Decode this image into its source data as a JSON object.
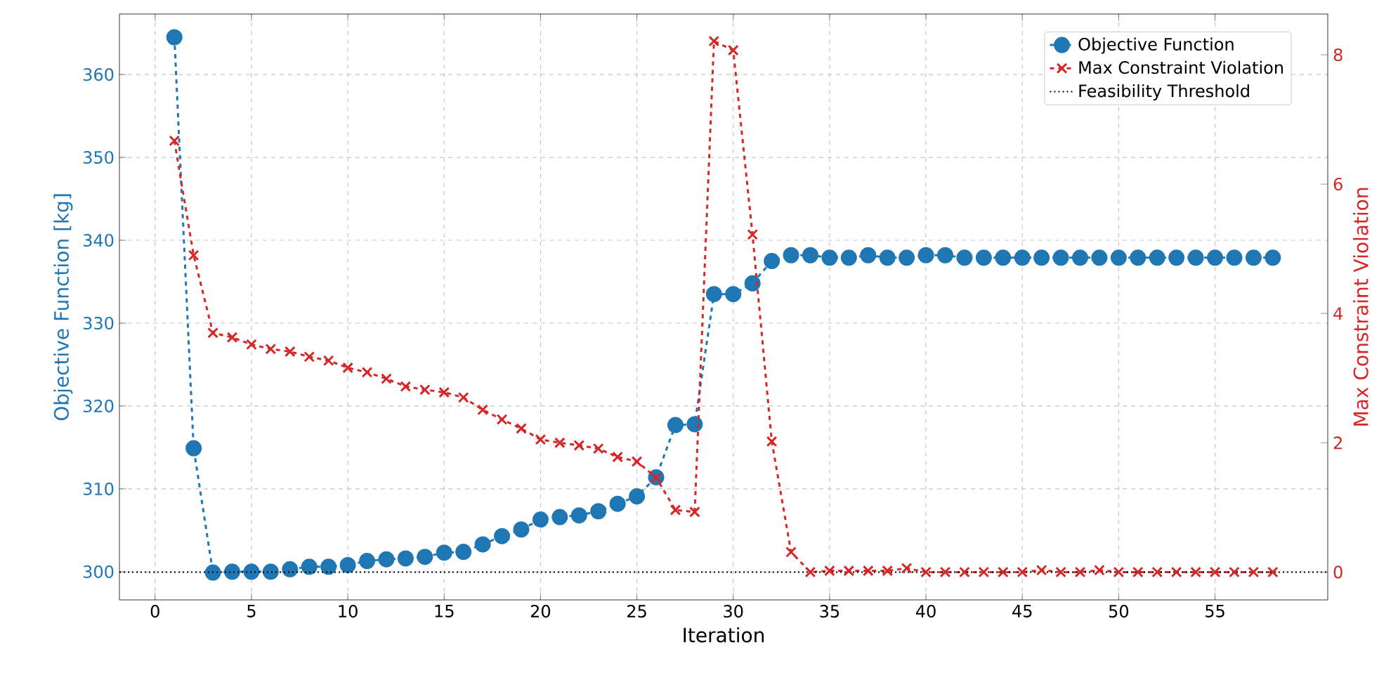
{
  "chart_data": {
    "type": "line",
    "xlabel": "Iteration",
    "ylabel": "Objective Function [kg]",
    "y2label": "Max Constraint Violation",
    "x": [
      1,
      2,
      3,
      4,
      5,
      6,
      7,
      8,
      9,
      10,
      11,
      12,
      13,
      14,
      15,
      16,
      17,
      18,
      19,
      20,
      21,
      22,
      23,
      24,
      25,
      26,
      27,
      28,
      29,
      30,
      31,
      32,
      33,
      34,
      35,
      36,
      37,
      38,
      39,
      40,
      41,
      42,
      43,
      44,
      45,
      46,
      47,
      48,
      49,
      50,
      51,
      52,
      53,
      54,
      55,
      56,
      57,
      58
    ],
    "series": [
      {
        "name": "Objective Function",
        "color": "#1f77b4",
        "marker": "circle",
        "line_style": "dashed",
        "values": [
          364.5,
          314.9,
          299.9,
          300.0,
          300.0,
          300.0,
          300.3,
          300.6,
          300.6,
          300.8,
          301.3,
          301.5,
          301.6,
          301.8,
          302.3,
          302.4,
          303.3,
          304.3,
          305.1,
          306.3,
          306.6,
          306.8,
          307.3,
          308.2,
          309.1,
          311.4,
          317.7,
          317.8,
          333.5,
          333.5,
          334.8,
          337.5,
          338.2,
          338.2,
          337.9,
          337.9,
          338.2,
          337.9,
          337.9,
          338.2,
          338.2,
          337.9,
          337.9,
          337.9,
          337.9,
          337.9,
          337.9,
          337.9,
          337.9,
          337.9,
          337.9,
          337.9,
          337.9,
          337.9,
          337.9,
          337.9,
          337.9,
          337.9
        ]
      },
      {
        "name": "Max Constraint Violation",
        "color": "#d62728",
        "marker": "cross",
        "line_style": "dashed",
        "axis": "y2",
        "values": [
          6.67,
          4.9,
          3.7,
          3.63,
          3.52,
          3.45,
          3.41,
          3.33,
          3.27,
          3.16,
          3.09,
          2.99,
          2.87,
          2.82,
          2.78,
          2.7,
          2.51,
          2.36,
          2.22,
          2.05,
          2.0,
          1.96,
          1.91,
          1.78,
          1.71,
          1.46,
          0.96,
          0.93,
          8.21,
          8.07,
          5.22,
          2.02,
          0.31,
          0.0,
          0.02,
          0.02,
          0.02,
          0.02,
          0.06,
          0.0,
          0.0,
          0.0,
          0.0,
          0.0,
          0.0,
          0.03,
          0.0,
          0.0,
          0.03,
          0.0,
          0.0,
          0.0,
          0.0,
          0.0,
          0.0,
          0.0,
          0.0,
          0.0
        ]
      }
    ],
    "ref_lines": [
      {
        "axis": "y2",
        "value": 0,
        "label": "Feasibility Threshold",
        "color": "#000000",
        "line_style": "dotted"
      }
    ],
    "xlim": [
      -1.85,
      60.85
    ],
    "xticks": [
      0,
      5,
      10,
      15,
      20,
      25,
      30,
      35,
      40,
      45,
      50,
      55
    ],
    "ylim": [
      296.6,
      367.3
    ],
    "yticks": [
      300,
      310,
      320,
      330,
      340,
      350,
      360
    ],
    "y2lim": [
      -0.43,
      8.63
    ],
    "y2ticks": [
      0,
      2,
      4,
      6,
      8
    ],
    "grid": true,
    "legend": "top right"
  }
}
